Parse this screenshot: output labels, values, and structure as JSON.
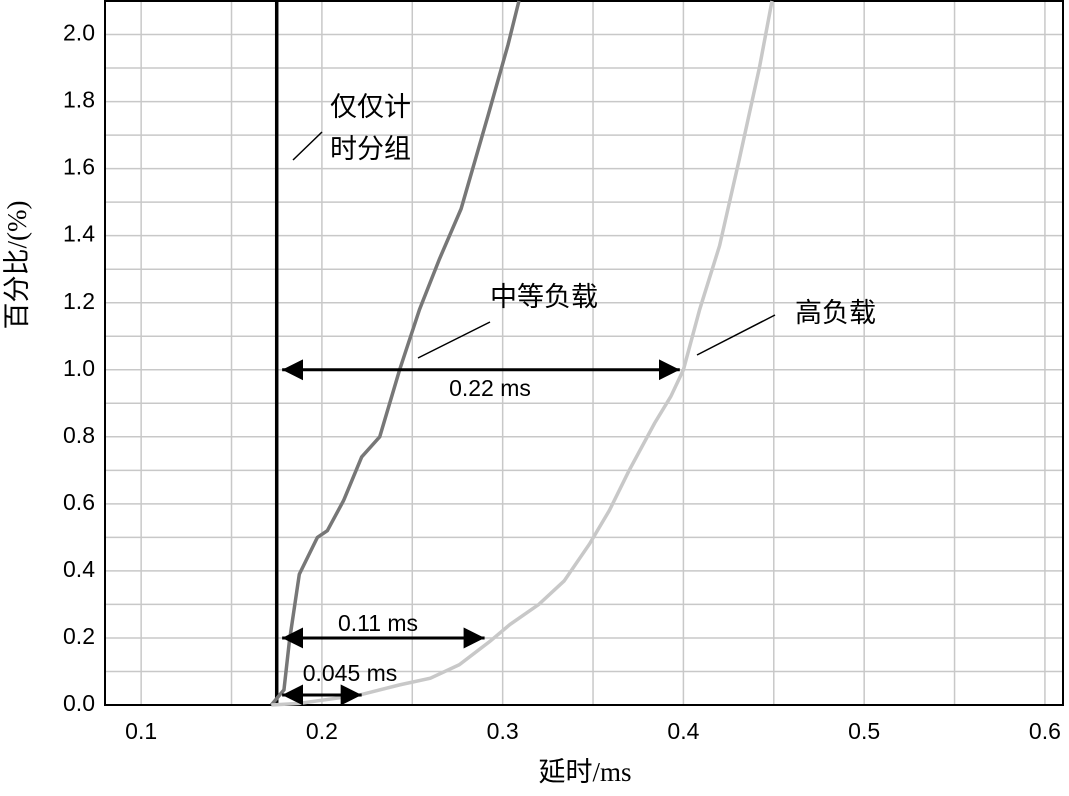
{
  "chart_data": {
    "type": "line",
    "xlabel": "延时/ms",
    "ylabel": "百分比/(%)",
    "xlim": [
      0.08,
      0.61
    ],
    "ylim": [
      0,
      2.1
    ],
    "xticks": [
      0.1,
      0.2,
      0.3,
      0.4,
      0.5,
      0.6
    ],
    "yticks": [
      {
        "value": 0,
        "label": "0.0"
      },
      0.2,
      0.4,
      0.6,
      0.8,
      {
        "value": 1,
        "label": "1.0"
      },
      1.2,
      1.4,
      1.6,
      1.8,
      {
        "value": 2,
        "label": "2.0"
      }
    ],
    "grid": true,
    "series": [
      {
        "color": "#000000",
        "x": [
          0.175,
          0.175
        ],
        "values": [
          0,
          2.1
        ]
      },
      {
        "color": "#777777",
        "x": [
          0.172,
          0.179,
          0.182,
          0.1875,
          0.1975,
          0.203,
          0.212,
          0.222,
          0.232,
          0.243,
          0.254,
          0.265,
          0.277,
          0.292,
          0.303,
          0.309
        ],
        "values": [
          0,
          0.045,
          0.19,
          0.39,
          0.5,
          0.52,
          0.61,
          0.74,
          0.8,
          1.0,
          1.18,
          1.33,
          1.48,
          1.76,
          1.97,
          2.1
        ]
      },
      {
        "color": "#c8c8c8",
        "x": [
          0.172,
          0.1875,
          0.221,
          0.243,
          0.26,
          0.276,
          0.293,
          0.304,
          0.32,
          0.334,
          0.348,
          0.359,
          0.37,
          0.384,
          0.393,
          0.4,
          0.409,
          0.42,
          0.431,
          0.442,
          0.449
        ],
        "values": [
          0,
          0.005,
          0.03,
          0.06,
          0.08,
          0.12,
          0.19,
          0.24,
          0.3,
          0.37,
          0.48,
          0.58,
          0.7,
          0.84,
          0.92,
          1.0,
          1.18,
          1.37,
          1.63,
          1.9,
          2.1
        ]
      }
    ],
    "labels": [
      [
        "仅仅计",
        "时分组"
      ],
      [
        "中等负载"
      ],
      [
        "高负载"
      ]
    ],
    "arrows": [
      {
        "text": "0.22 ms",
        "x1": 0.178,
        "x2": 0.398,
        "y": 1.0
      },
      {
        "text": "0.11 ms",
        "x1": 0.178,
        "x2": 0.29,
        "y": 0.2
      },
      {
        "text": "0.045 ms",
        "x1": 0.178,
        "x2": 0.222,
        "y": 0.03
      }
    ]
  }
}
